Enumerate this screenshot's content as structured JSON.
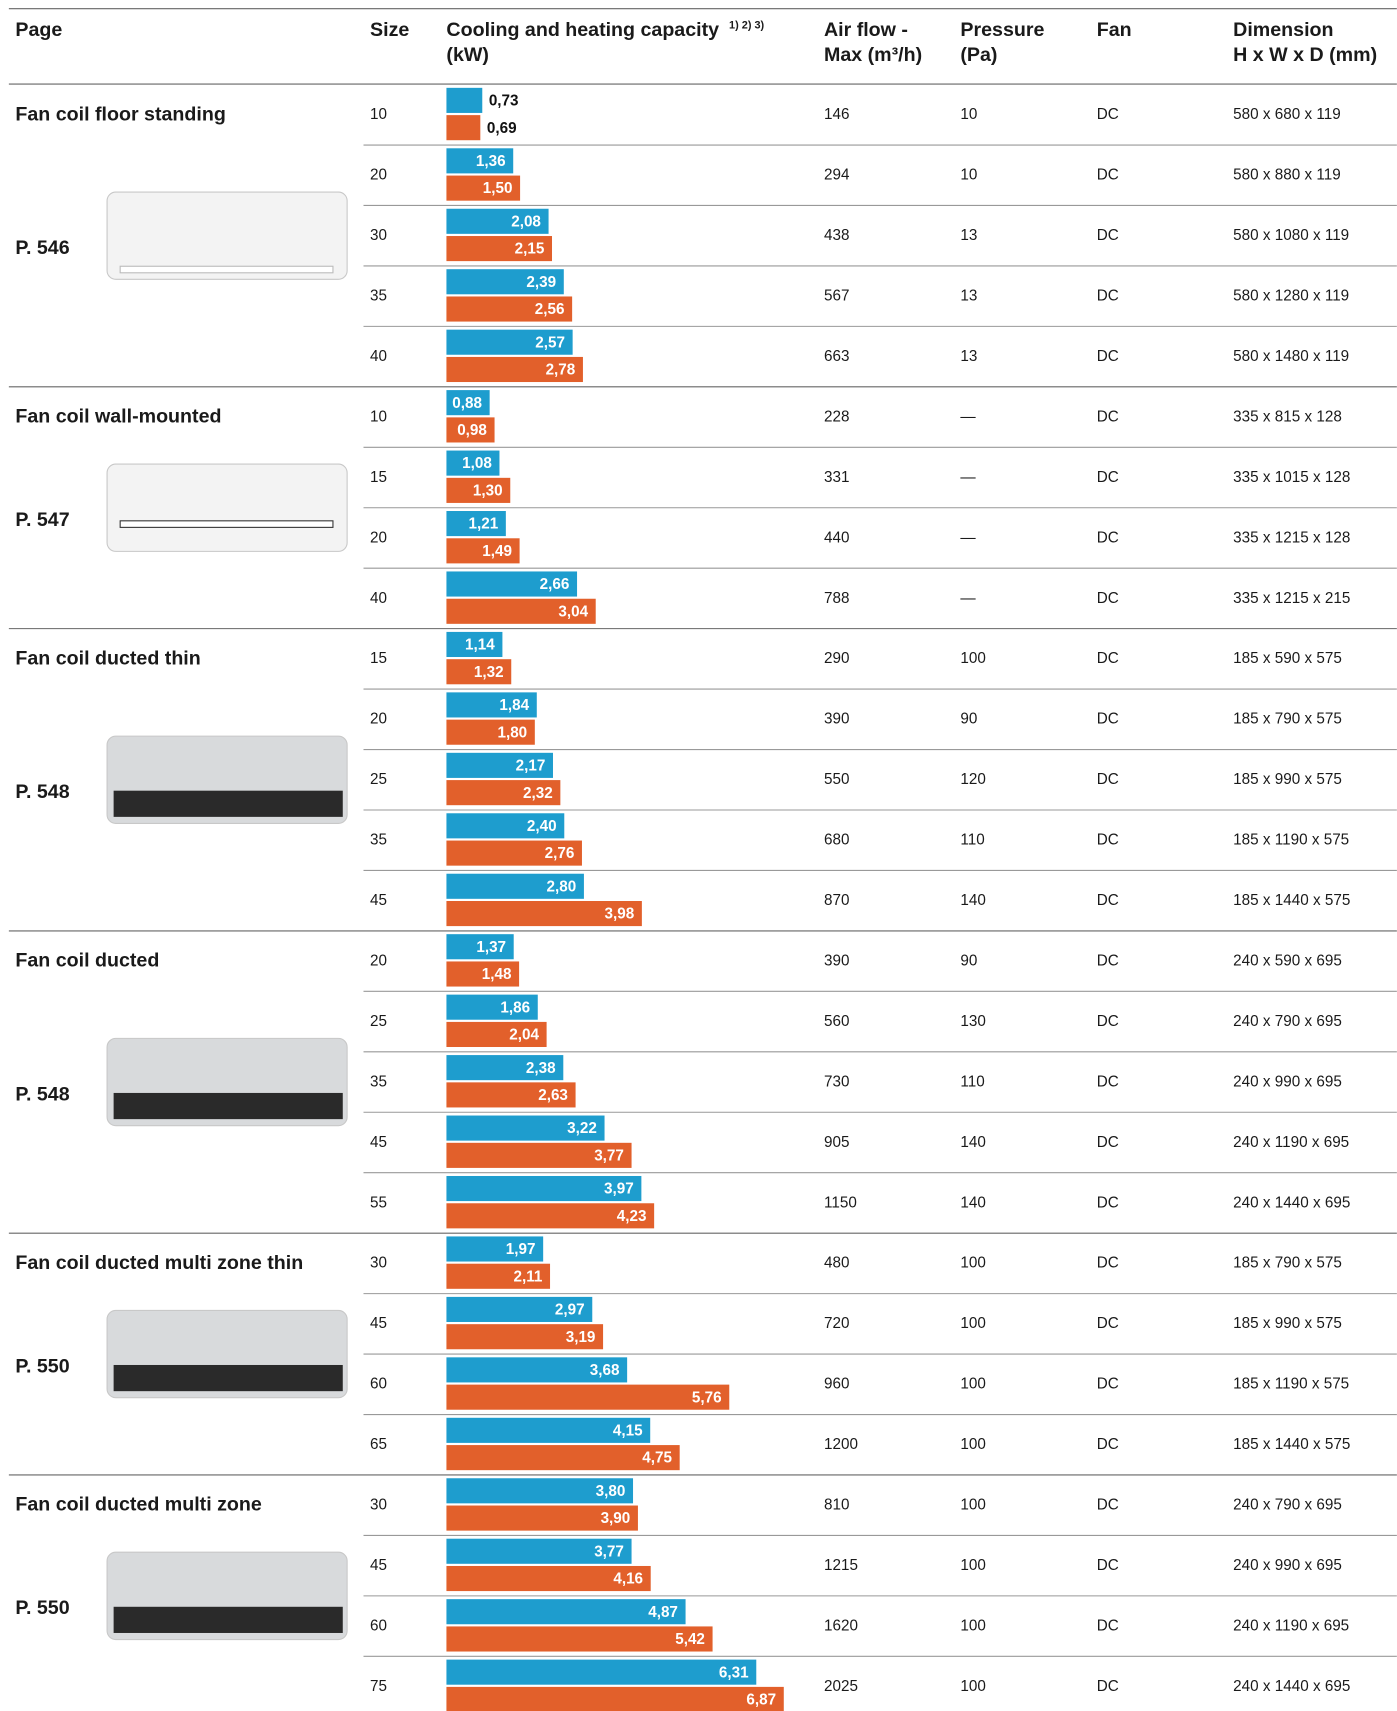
{
  "header": {
    "page": "Page",
    "size": "Size",
    "capacity": [
      "Cooling and heating capacity",
      "(kW)"
    ],
    "capacity_note": "1) 2) 3)",
    "airflow": [
      "Air flow -",
      "Max (m³/h)"
    ],
    "pressure": [
      "Pressure",
      "(Pa)"
    ],
    "fan": "Fan",
    "dimension": [
      "Dimension",
      "H x W x D (mm)"
    ]
  },
  "groups": [
    {
      "name": "Fan coil floor standing",
      "page": "P. 546",
      "rows": [
        {
          "size": 10,
          "cooling": 0.73,
          "cooling_label": "0,73",
          "heating": 0.69,
          "heating_label": "0,69",
          "airflow": 146,
          "pressure": 10,
          "fan": "DC",
          "dimension": "580 x 680 x 119"
        },
        {
          "size": 20,
          "cooling": 1.36,
          "cooling_label": "1,36",
          "heating": 1.5,
          "heating_label": "1,50",
          "airflow": 294,
          "pressure": 10,
          "fan": "DC",
          "dimension": "580 x 880 x 119"
        },
        {
          "size": 30,
          "cooling": 2.08,
          "cooling_label": "2,08",
          "heating": 2.15,
          "heating_label": "2,15",
          "airflow": 438,
          "pressure": 13,
          "fan": "DC",
          "dimension": "580 x 1080 x 119"
        },
        {
          "size": 35,
          "cooling": 2.39,
          "cooling_label": "2,39",
          "heating": 2.56,
          "heating_label": "2,56",
          "airflow": 567,
          "pressure": 13,
          "fan": "DC",
          "dimension": "580 x 1280 x 119"
        },
        {
          "size": 40,
          "cooling": 2.57,
          "cooling_label": "2,57",
          "heating": 2.78,
          "heating_label": "2,78",
          "airflow": 663,
          "pressure": 13,
          "fan": "DC",
          "dimension": "580 x 1480 x 119"
        }
      ]
    },
    {
      "name": "Fan coil wall-mounted",
      "page": "P. 547",
      "rows": [
        {
          "size": 10,
          "cooling": 0.88,
          "cooling_label": "0,88",
          "heating": 0.98,
          "heating_label": "0,98",
          "airflow": 228,
          "pressure": "—",
          "fan": "DC",
          "dimension": "335 x 815 x 128"
        },
        {
          "size": 15,
          "cooling": 1.08,
          "cooling_label": "1,08",
          "heating": 1.3,
          "heating_label": "1,30",
          "airflow": 331,
          "pressure": "—",
          "fan": "DC",
          "dimension": "335 x 1015 x 128"
        },
        {
          "size": 20,
          "cooling": 1.21,
          "cooling_label": "1,21",
          "heating": 1.49,
          "heating_label": "1,49",
          "airflow": 440,
          "pressure": "—",
          "fan": "DC",
          "dimension": "335 x 1215 x 128"
        },
        {
          "size": 40,
          "cooling": 2.66,
          "cooling_label": "2,66",
          "heating": 3.04,
          "heating_label": "3,04",
          "airflow": 788,
          "pressure": "—",
          "fan": "DC",
          "dimension": "335 x 1215 x 215"
        }
      ]
    },
    {
      "name": "Fan coil ducted thin",
      "page": "P. 548",
      "rows": [
        {
          "size": 15,
          "cooling": 1.14,
          "cooling_label": "1,14",
          "heating": 1.32,
          "heating_label": "1,32",
          "airflow": 290,
          "pressure": 100,
          "fan": "DC",
          "dimension": "185 x 590 x 575"
        },
        {
          "size": 20,
          "cooling": 1.84,
          "cooling_label": "1,84",
          "heating": 1.8,
          "heating_label": "1,80",
          "airflow": 390,
          "pressure": 90,
          "fan": "DC",
          "dimension": "185 x 790 x 575"
        },
        {
          "size": 25,
          "cooling": 2.17,
          "cooling_label": "2,17",
          "heating": 2.32,
          "heating_label": "2,32",
          "airflow": 550,
          "pressure": 120,
          "fan": "DC",
          "dimension": "185 x 990 x 575"
        },
        {
          "size": 35,
          "cooling": 2.4,
          "cooling_label": "2,40",
          "heating": 2.76,
          "heating_label": "2,76",
          "airflow": 680,
          "pressure": 110,
          "fan": "DC",
          "dimension": "185 x 1190 x 575"
        },
        {
          "size": 45,
          "cooling": 2.8,
          "cooling_label": "2,80",
          "heating": 3.98,
          "heating_label": "3,98",
          "airflow": 870,
          "pressure": 140,
          "fan": "DC",
          "dimension": "185 x 1440 x 575"
        }
      ]
    },
    {
      "name": "Fan coil ducted",
      "page": "P. 548",
      "rows": [
        {
          "size": 20,
          "cooling": 1.37,
          "cooling_label": "1,37",
          "heating": 1.48,
          "heating_label": "1,48",
          "airflow": 390,
          "pressure": 90,
          "fan": "DC",
          "dimension": "240 x 590 x 695"
        },
        {
          "size": 25,
          "cooling": 1.86,
          "cooling_label": "1,86",
          "heating": 2.04,
          "heating_label": "2,04",
          "airflow": 560,
          "pressure": 130,
          "fan": "DC",
          "dimension": "240 x 790 x 695"
        },
        {
          "size": 35,
          "cooling": 2.38,
          "cooling_label": "2,38",
          "heating": 2.63,
          "heating_label": "2,63",
          "airflow": 730,
          "pressure": 110,
          "fan": "DC",
          "dimension": "240 x 990 x 695"
        },
        {
          "size": 45,
          "cooling": 3.22,
          "cooling_label": "3,22",
          "heating": 3.77,
          "heating_label": "3,77",
          "airflow": 905,
          "pressure": 140,
          "fan": "DC",
          "dimension": "240 x 1190 x 695"
        },
        {
          "size": 55,
          "cooling": 3.97,
          "cooling_label": "3,97",
          "heating": 4.23,
          "heating_label": "4,23",
          "airflow": 1150,
          "pressure": 140,
          "fan": "DC",
          "dimension": "240 x 1440 x 695"
        }
      ]
    },
    {
      "name": "Fan coil ducted multi zone thin",
      "page": "P. 550",
      "rows": [
        {
          "size": 30,
          "cooling": 1.97,
          "cooling_label": "1,97",
          "heating": 2.11,
          "heating_label": "2,11",
          "airflow": 480,
          "pressure": 100,
          "fan": "DC",
          "dimension": "185 x 790 x 575"
        },
        {
          "size": 45,
          "cooling": 2.97,
          "cooling_label": "2,97",
          "heating": 3.19,
          "heating_label": "3,19",
          "airflow": 720,
          "pressure": 100,
          "fan": "DC",
          "dimension": "185 x 990 x 575"
        },
        {
          "size": 60,
          "cooling": 3.68,
          "cooling_label": "3,68",
          "heating": 5.76,
          "heating_label": "5,76",
          "airflow": 960,
          "pressure": 100,
          "fan": "DC",
          "dimension": "185 x 1190 x 575"
        },
        {
          "size": 65,
          "cooling": 4.15,
          "cooling_label": "4,15",
          "heating": 4.75,
          "heating_label": "4,75",
          "airflow": 1200,
          "pressure": 100,
          "fan": "DC",
          "dimension": "185 x 1440 x 575"
        }
      ]
    },
    {
      "name": "Fan coil ducted multi zone",
      "page": "P. 550",
      "rows": [
        {
          "size": 30,
          "cooling": 3.8,
          "cooling_label": "3,80",
          "heating": 3.9,
          "heating_label": "3,90",
          "airflow": 810,
          "pressure": 100,
          "fan": "DC",
          "dimension": "240 x 790 x 695"
        },
        {
          "size": 45,
          "cooling": 3.77,
          "cooling_label": "3,77",
          "heating": 4.16,
          "heating_label": "4,16",
          "airflow": 1215,
          "pressure": 100,
          "fan": "DC",
          "dimension": "240 x 990 x 695"
        },
        {
          "size": 60,
          "cooling": 4.87,
          "cooling_label": "4,87",
          "heating": 5.42,
          "heating_label": "5,42",
          "airflow": 1620,
          "pressure": 100,
          "fan": "DC",
          "dimension": "240 x 1190 x 695"
        },
        {
          "size": 75,
          "cooling": 6.31,
          "cooling_label": "6,31",
          "heating": 6.87,
          "heating_label": "6,87",
          "airflow": 2025,
          "pressure": 100,
          "fan": "DC",
          "dimension": "240 x 1440 x 695"
        }
      ]
    }
  ]
}
